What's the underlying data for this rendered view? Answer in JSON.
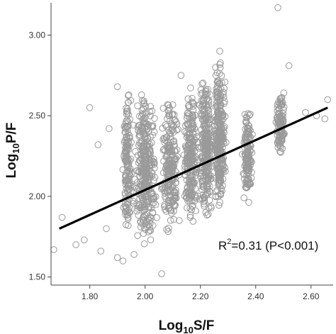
{
  "chart_data": {
    "type": "scatter",
    "title": "",
    "xlabel": {
      "base": "Log",
      "sub": "10",
      "rest": "S/F"
    },
    "ylabel": {
      "base": "Log",
      "sub": "10",
      "rest": "P/F"
    },
    "xlim": [
      1.66,
      2.68
    ],
    "ylim": [
      1.45,
      3.2
    ],
    "x_ticks": [
      "1.80",
      "2.00",
      "2.20",
      "2.40",
      "2.60"
    ],
    "y_ticks": [
      "1.50",
      "2.00",
      "2.50",
      "3.00"
    ],
    "grid": false,
    "marker": {
      "shape": "open-circle",
      "color": "#9a9a9a"
    },
    "line_color": "#000000",
    "regression_line": {
      "x": [
        1.69,
        2.66
      ],
      "y": [
        1.8,
        2.55
      ]
    },
    "annotation": {
      "lead": "R",
      "sup": "2",
      "rest": "=0.31  (P<0.001)"
    },
    "point_clusters": [
      {
        "x_center": 1.935,
        "x_spread": 0.02,
        "y_min": 1.75,
        "y_max": 2.68,
        "n": 150
      },
      {
        "x_center": 2.0,
        "x_spread": 0.05,
        "y_min": 1.7,
        "y_max": 2.65,
        "n": 330
      },
      {
        "x_center": 2.09,
        "x_spread": 0.04,
        "y_min": 1.75,
        "y_max": 2.6,
        "n": 230
      },
      {
        "x_center": 2.165,
        "x_spread": 0.03,
        "y_min": 1.8,
        "y_max": 2.7,
        "n": 230
      },
      {
        "x_center": 2.22,
        "x_spread": 0.03,
        "y_min": 1.85,
        "y_max": 2.75,
        "n": 260
      },
      {
        "x_center": 2.27,
        "x_spread": 0.025,
        "y_min": 1.9,
        "y_max": 2.85,
        "n": 280
      },
      {
        "x_center": 2.37,
        "x_spread": 0.02,
        "y_min": 1.95,
        "y_max": 2.55,
        "n": 140
      },
      {
        "x_center": 2.49,
        "x_spread": 0.02,
        "y_min": 2.25,
        "y_max": 2.65,
        "n": 110
      }
    ],
    "outliers": [
      [
        1.67,
        1.67
      ],
      [
        1.7,
        1.87
      ],
      [
        1.75,
        1.7
      ],
      [
        1.78,
        1.73
      ],
      [
        1.8,
        2.55
      ],
      [
        1.83,
        2.32
      ],
      [
        1.87,
        2.42
      ],
      [
        1.9,
        2.68
      ],
      [
        1.86,
        1.8
      ],
      [
        1.9,
        1.62
      ],
      [
        1.92,
        1.6
      ],
      [
        2.06,
        1.52
      ],
      [
        2.13,
        2.75
      ],
      [
        2.27,
        2.9
      ],
      [
        2.48,
        3.17
      ],
      [
        2.52,
        2.81
      ],
      [
        2.65,
        2.48
      ],
      [
        2.66,
        2.6
      ],
      [
        2.62,
        2.5
      ],
      [
        1.84,
        1.66
      ],
      [
        1.96,
        1.64
      ],
      [
        2.58,
        2.52
      ]
    ]
  }
}
